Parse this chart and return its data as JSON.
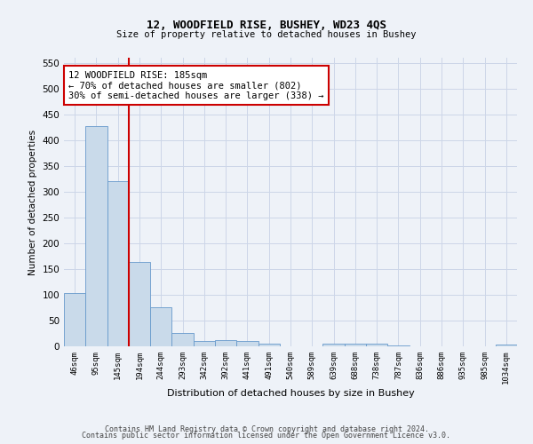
{
  "title": "12, WOODFIELD RISE, BUSHEY, WD23 4QS",
  "subtitle": "Size of property relative to detached houses in Bushey",
  "xlabel": "Distribution of detached houses by size in Bushey",
  "ylabel": "Number of detached properties",
  "bar_labels": [
    "46sqm",
    "95sqm",
    "145sqm",
    "194sqm",
    "244sqm",
    "293sqm",
    "342sqm",
    "392sqm",
    "441sqm",
    "491sqm",
    "540sqm",
    "589sqm",
    "639sqm",
    "688sqm",
    "738sqm",
    "787sqm",
    "836sqm",
    "886sqm",
    "935sqm",
    "985sqm",
    "1034sqm"
  ],
  "bar_values": [
    103,
    428,
    320,
    163,
    75,
    26,
    11,
    12,
    11,
    6,
    0,
    0,
    5,
    5,
    5,
    2,
    0,
    0,
    0,
    0,
    4
  ],
  "bar_color": "#c9daea",
  "bar_edge_color": "#6699cc",
  "grid_color": "#ccd6e8",
  "annotation_text": "12 WOODFIELD RISE: 185sqm\n← 70% of detached houses are smaller (802)\n30% of semi-detached houses are larger (338) →",
  "annotation_box_color": "#ffffff",
  "annotation_box_edge": "#cc0000",
  "vline_x": 2.5,
  "vline_color": "#cc0000",
  "ylim": [
    0,
    560
  ],
  "yticks": [
    0,
    50,
    100,
    150,
    200,
    250,
    300,
    350,
    400,
    450,
    500,
    550
  ],
  "footer_line1": "Contains HM Land Registry data © Crown copyright and database right 2024.",
  "footer_line2": "Contains public sector information licensed under the Open Government Licence v3.0.",
  "bg_color": "#eef2f8"
}
